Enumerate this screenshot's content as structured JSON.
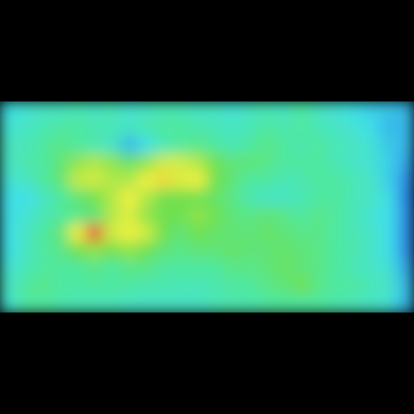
{
  "chart_data": {
    "type": "heatmap",
    "tick_labels": false,
    "zlim": [
      0,
      10
    ],
    "cells": [
      [
        3.5,
        3.8,
        4,
        4,
        4.2,
        4,
        4.2,
        3.8,
        4,
        4.2,
        4.2,
        4,
        4,
        3.8,
        4,
        4.2,
        4,
        4.5,
        4,
        3.8,
        3.5,
        3.3,
        3.2,
        3
      ],
      [
        3.8,
        4,
        4.2,
        4.5,
        4.5,
        4.3,
        4.2,
        4,
        4.3,
        4.5,
        4.5,
        4.3,
        4.2,
        4,
        4.2,
        4.5,
        4.3,
        4.5,
        4.2,
        4,
        3.8,
        3.5,
        3,
        3
      ],
      [
        4,
        4.2,
        4.5,
        4.8,
        4.5,
        4.3,
        4,
        3,
        3.5,
        4.2,
        4.5,
        4.8,
        4.5,
        4.2,
        4.5,
        4.8,
        4.5,
        4.3,
        4.5,
        4.2,
        4,
        3.8,
        3.2,
        3
      ],
      [
        4,
        4.3,
        4.5,
        5,
        6,
        6.5,
        6,
        5.2,
        6,
        7,
        7,
        6.5,
        5.5,
        5,
        5,
        4.8,
        4.5,
        4.5,
        4.5,
        4.2,
        4,
        3.8,
        3.3,
        2.8
      ],
      [
        3.8,
        4,
        4.5,
        5,
        6.8,
        7,
        6.5,
        6.5,
        7.5,
        7.8,
        7.2,
        7.5,
        5.5,
        5,
        4.5,
        4.5,
        4.2,
        4.3,
        4.5,
        4.5,
        4.2,
        4,
        3.3,
        2.5
      ],
      [
        3.5,
        3.5,
        4,
        4.5,
        5,
        5.5,
        6.5,
        7.5,
        6.5,
        5.5,
        5.5,
        5.5,
        5.2,
        4.8,
        4.3,
        4,
        4,
        4.2,
        4.5,
        4.5,
        4.2,
        4,
        3.5,
        2.3
      ],
      [
        3.5,
        3.8,
        4.2,
        4.5,
        4.8,
        5,
        6.5,
        7.2,
        6,
        5.5,
        5.5,
        6,
        5.5,
        5,
        4.8,
        5,
        4.8,
        4.5,
        4.8,
        4.5,
        4.2,
        3.8,
        3.5,
        2.5
      ],
      [
        3.5,
        4,
        4.5,
        5,
        7.5,
        9.5,
        7,
        7.5,
        7,
        5.5,
        5,
        5.5,
        5.2,
        5,
        5,
        5.2,
        5,
        4.8,
        4.8,
        4.5,
        4.2,
        4,
        3.5,
        2.5
      ],
      [
        3.5,
        4,
        4.5,
        4.8,
        5.5,
        6,
        5.5,
        6,
        5.5,
        5,
        4.8,
        5,
        5,
        5.2,
        5,
        5,
        5.2,
        5,
        4.8,
        4.5,
        4.3,
        4,
        3.5,
        2.5
      ],
      [
        3.8,
        4.2,
        4.5,
        4.5,
        4.5,
        4.8,
        4.5,
        4.8,
        4.8,
        4.5,
        4.5,
        4.5,
        4.5,
        4.8,
        4.8,
        5,
        5.2,
        5,
        4.8,
        4.5,
        4.2,
        4,
        3.8,
        2.8
      ],
      [
        4,
        4.5,
        4.8,
        4.5,
        4.5,
        4.5,
        4.5,
        4.5,
        4.3,
        4.3,
        4.2,
        4.2,
        4.3,
        4.5,
        4.5,
        4.8,
        5,
        5.5,
        4.8,
        4.5,
        4.5,
        4.2,
        4,
        3
      ],
      [
        3.8,
        4.5,
        4.5,
        4.3,
        4.2,
        4.2,
        4.2,
        4,
        4,
        4,
        4,
        4,
        4.2,
        4.3,
        4.3,
        4.5,
        4.5,
        4.5,
        4.5,
        4.3,
        4.2,
        4,
        3.8,
        3
      ]
    ]
  }
}
